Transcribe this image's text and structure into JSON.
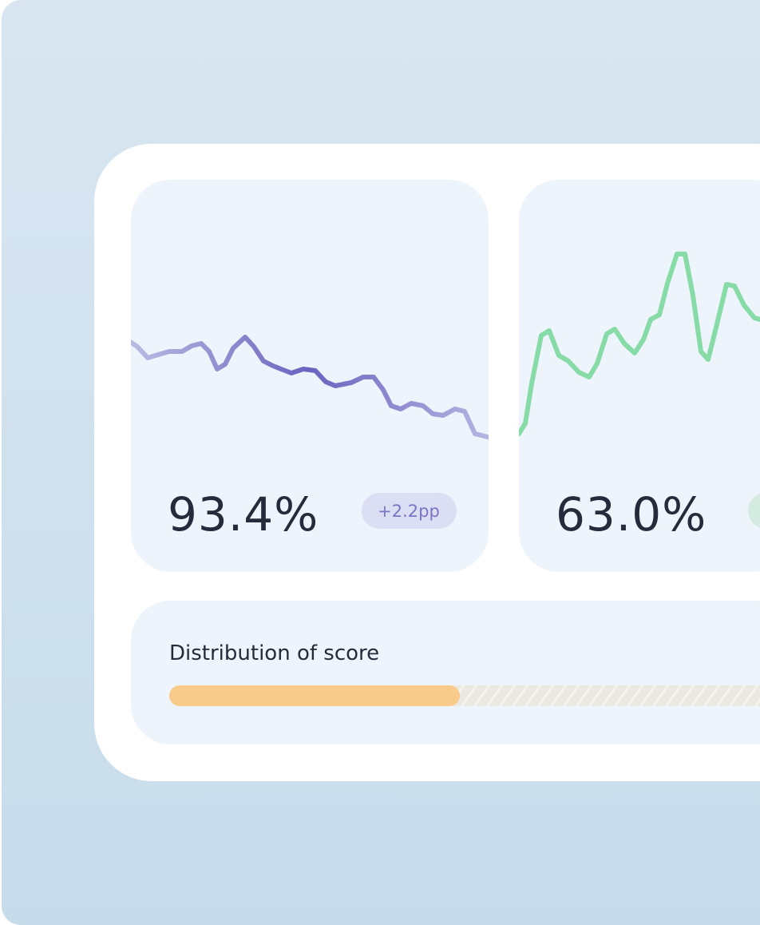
{
  "cards": [
    {
      "value": "93.4%",
      "badge": "+2.2pp"
    },
    {
      "value": "63.0%"
    }
  ],
  "distribution": {
    "title": "Distribution of score"
  }
}
